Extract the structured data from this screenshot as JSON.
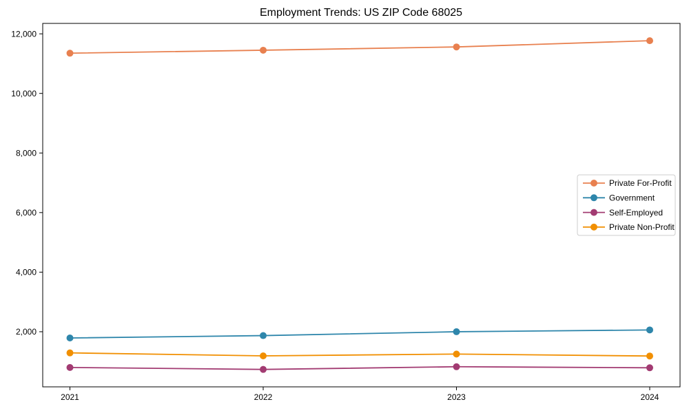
{
  "chart_data": {
    "type": "line",
    "title": "Employment Trends: US ZIP Code 68025",
    "xlabel": "",
    "ylabel": "",
    "grid": false,
    "legend_position": "center-right",
    "categories": [
      "2021",
      "2022",
      "2023",
      "2024"
    ],
    "series": [
      {
        "name": "Private For-Profit",
        "color": "#E8804F",
        "values": [
          11350,
          11450,
          11560,
          11770
        ]
      },
      {
        "name": "Government",
        "color": "#2E86AB",
        "values": [
          1790,
          1870,
          2000,
          2060
        ]
      },
      {
        "name": "Self-Employed",
        "color": "#A23B72",
        "values": [
          800,
          735,
          825,
          790
        ]
      },
      {
        "name": "Private Non-Profit",
        "color": "#F18F01",
        "values": [
          1290,
          1190,
          1250,
          1185
        ]
      }
    ],
    "ylim": [
      150,
      12350
    ],
    "yticks": [
      {
        "value": 2000,
        "label": "2,000"
      },
      {
        "value": 4000,
        "label": "4,000"
      },
      {
        "value": 6000,
        "label": "6,000"
      },
      {
        "value": 8000,
        "label": "8,000"
      },
      {
        "value": 10000,
        "label": "10,000"
      },
      {
        "value": 12000,
        "label": "12,000"
      }
    ]
  }
}
